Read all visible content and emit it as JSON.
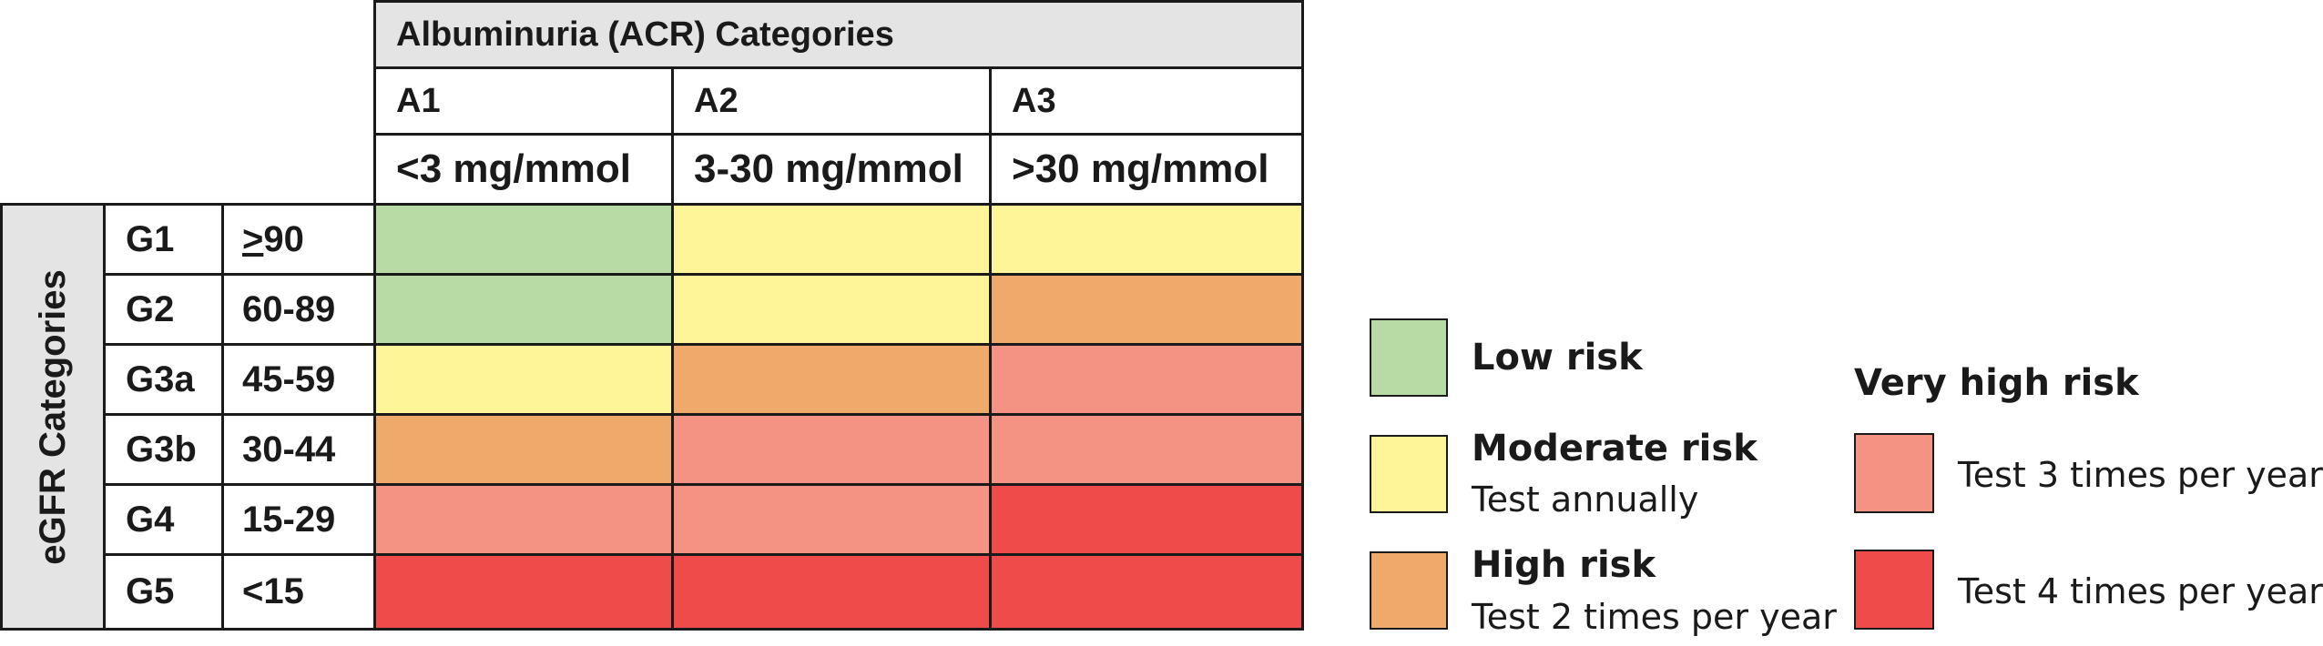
{
  "colors": {
    "low": "#b8dba6",
    "moderate": "#fdf597",
    "high": "#eea96b",
    "very_high_3": "#f49283",
    "very_high_4": "#ef4b4b",
    "header_grey": "#e4e4e4",
    "border": "#1a1a1a"
  },
  "table": {
    "albuminuria_title": "Albuminuria (ACR) Categories",
    "egfr_title": "eGFR Categories",
    "columns": [
      {
        "code": "A1",
        "range": "<3 mg/mmol"
      },
      {
        "code": "A2",
        "range": "3-30 mg/mmol"
      },
      {
        "code": "A3",
        "range": ">30 mg/mmol"
      }
    ],
    "rows": [
      {
        "code": "G1",
        "range_prefix": ">",
        "range": "90",
        "risks": [
          "low",
          "moderate",
          "moderate"
        ]
      },
      {
        "code": "G2",
        "range_prefix": "",
        "range": "60-89",
        "risks": [
          "low",
          "moderate",
          "high"
        ]
      },
      {
        "code": "G3a",
        "range_prefix": "",
        "range": "45-59",
        "risks": [
          "moderate",
          "high",
          "very_high_3"
        ]
      },
      {
        "code": "G3b",
        "range_prefix": "",
        "range": "30-44",
        "risks": [
          "high",
          "very_high_3",
          "very_high_3"
        ]
      },
      {
        "code": "G4",
        "range_prefix": "",
        "range": "15-29",
        "risks": [
          "very_high_3",
          "very_high_3",
          "very_high_4"
        ]
      },
      {
        "code": "G5",
        "range_prefix": "",
        "range": "<15",
        "risks": [
          "very_high_4",
          "very_high_4",
          "very_high_4"
        ]
      }
    ]
  },
  "legend": {
    "low": {
      "title": "Low risk",
      "sub": ""
    },
    "moderate": {
      "title": "Moderate risk",
      "sub": "Test annually"
    },
    "high": {
      "title": "High risk",
      "sub": "Test 2 times per year"
    },
    "very_high": {
      "title": "Very high risk",
      "items": [
        {
          "key": "very_high_3",
          "sub": "Test 3 times per year"
        },
        {
          "key": "very_high_4",
          "sub": "Test 4 times per year"
        }
      ]
    }
  }
}
